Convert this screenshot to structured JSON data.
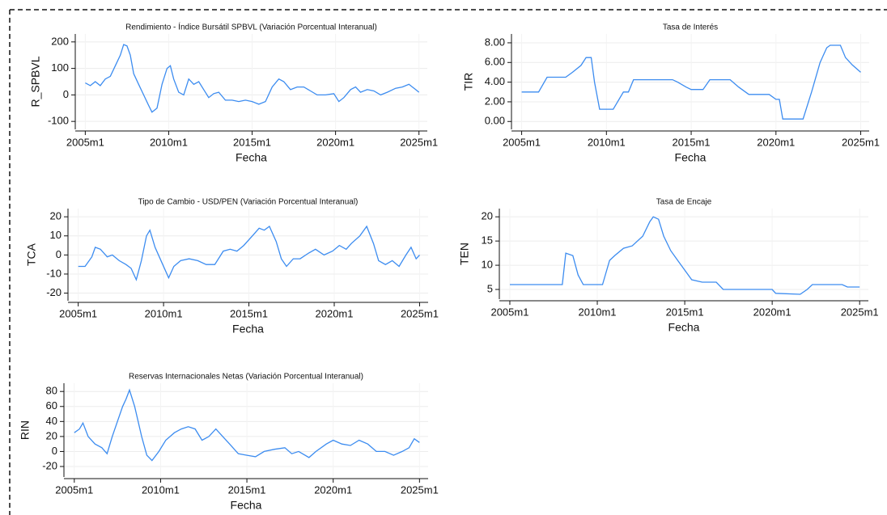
{
  "chart_data": [
    {
      "type": "line",
      "title": "Rendimiento - Índice Bursátil SPBVL (Variación Porcentual Interanual)",
      "xlabel": "Fecha",
      "ylabel": "R_SPBVL",
      "color": "#3c8cf0",
      "grid": true,
      "xlim": [
        2004.4,
        2025.5
      ],
      "xticks": [
        {
          "value": 2005,
          "label": "2005m1"
        },
        {
          "value": 2010,
          "label": "2010m1"
        },
        {
          "value": 2015,
          "label": "2015m1"
        },
        {
          "value": 2020,
          "label": "2020m1"
        },
        {
          "value": 2025,
          "label": "2025m1"
        }
      ],
      "ylim": [
        -130,
        230
      ],
      "yticks": [
        -100,
        0,
        100,
        200
      ],
      "x": [
        2005,
        2005.3,
        2005.6,
        2005.9,
        2006.2,
        2006.5,
        2006.8,
        2007.1,
        2007.3,
        2007.5,
        2007.7,
        2007.9,
        2008.2,
        2008.5,
        2008.8,
        2009.0,
        2009.3,
        2009.6,
        2009.9,
        2010.1,
        2010.3,
        2010.6,
        2010.9,
        2011.2,
        2011.5,
        2011.8,
        2012.1,
        2012.4,
        2012.7,
        2013.0,
        2013.4,
        2013.8,
        2014.2,
        2014.6,
        2015.0,
        2015.4,
        2015.8,
        2016.2,
        2016.6,
        2016.9,
        2017.3,
        2017.7,
        2018.1,
        2018.5,
        2018.9,
        2019.4,
        2019.9,
        2020.2,
        2020.5,
        2020.9,
        2021.2,
        2021.5,
        2021.9,
        2022.3,
        2022.7,
        2023.1,
        2023.6,
        2024.0,
        2024.4,
        2024.8,
        2025.0
      ],
      "values": [
        45,
        35,
        50,
        35,
        60,
        70,
        110,
        150,
        190,
        185,
        150,
        80,
        40,
        0,
        -40,
        -65,
        -50,
        40,
        100,
        110,
        60,
        10,
        0,
        60,
        40,
        50,
        20,
        -10,
        5,
        10,
        -20,
        -20,
        -25,
        -20,
        -25,
        -35,
        -25,
        30,
        60,
        50,
        20,
        30,
        30,
        15,
        0,
        0,
        5,
        -25,
        -10,
        20,
        30,
        10,
        20,
        15,
        0,
        10,
        25,
        30,
        40,
        20,
        10
      ]
    },
    {
      "type": "line",
      "title": "Tasa de Interés",
      "xlabel": "Fecha",
      "ylabel": "TIR",
      "color": "#3c8cf0",
      "grid": true,
      "xlim": [
        2004.4,
        2025.5
      ],
      "xticks": [
        {
          "value": 2005,
          "label": "2005m1"
        },
        {
          "value": 2010,
          "label": "2010m1"
        },
        {
          "value": 2015,
          "label": "2015m1"
        },
        {
          "value": 2020,
          "label": "2020m1"
        },
        {
          "value": 2025,
          "label": "2025m1"
        }
      ],
      "ylim": [
        -0.8,
        8.9
      ],
      "yticks": [
        {
          "value": 0,
          "label": "0.00"
        },
        {
          "value": 2,
          "label": "2.00"
        },
        {
          "value": 4,
          "label": "4.00"
        },
        {
          "value": 6,
          "label": "6.00"
        },
        {
          "value": 8,
          "label": "8.00"
        }
      ],
      "x": [
        2005,
        2006,
        2006.5,
        2007.6,
        2008.0,
        2008.5,
        2008.8,
        2009.1,
        2009.3,
        2009.6,
        2010.4,
        2011.0,
        2011.3,
        2011.6,
        2013.9,
        2014.2,
        2014.7,
        2015.0,
        2015.7,
        2016.1,
        2017.3,
        2017.8,
        2018.4,
        2019.6,
        2020.0,
        2020.2,
        2020.4,
        2021.6,
        2022.1,
        2022.6,
        2023.0,
        2023.2,
        2023.8,
        2024.1,
        2024.5,
        2025.0
      ],
      "values": [
        3,
        3,
        4.5,
        4.5,
        5,
        5.7,
        6.5,
        6.5,
        4,
        1.25,
        1.25,
        3,
        3,
        4.25,
        4.25,
        4,
        3.5,
        3.25,
        3.25,
        4.25,
        4.25,
        3.5,
        2.75,
        2.75,
        2.25,
        2.25,
        0.25,
        0.25,
        3,
        6,
        7.5,
        7.75,
        7.75,
        6.5,
        5.75,
        5
      ]
    },
    {
      "type": "line",
      "title": "Tipo de Cambio - USD/PEN (Variación Porcentual Interanual)",
      "xlabel": "Fecha",
      "ylabel": "TCA",
      "color": "#3c8cf0",
      "grid": true,
      "xlim": [
        2004.4,
        2025.5
      ],
      "xticks": [
        {
          "value": 2005,
          "label": "2005m1"
        },
        {
          "value": 2010,
          "label": "2010m1"
        },
        {
          "value": 2015,
          "label": "2015m1"
        },
        {
          "value": 2020,
          "label": "2020m1"
        },
        {
          "value": 2025,
          "label": "2025m1"
        }
      ],
      "ylim": [
        -24,
        24.3
      ],
      "yticks": [
        -20,
        -10,
        0,
        10,
        20
      ],
      "x": [
        2005,
        2005.4,
        2005.8,
        2006.0,
        2006.3,
        2006.7,
        2007.0,
        2007.4,
        2007.8,
        2008.1,
        2008.4,
        2008.7,
        2009.0,
        2009.2,
        2009.5,
        2009.9,
        2010.3,
        2010.6,
        2011.0,
        2011.5,
        2012.0,
        2012.5,
        2013.0,
        2013.5,
        2013.9,
        2014.3,
        2014.7,
        2015.2,
        2015.6,
        2015.9,
        2016.2,
        2016.6,
        2016.9,
        2017.2,
        2017.6,
        2018.0,
        2018.5,
        2018.9,
        2019.4,
        2019.9,
        2020.3,
        2020.7,
        2021.0,
        2021.5,
        2021.9,
        2022.3,
        2022.6,
        2023.0,
        2023.4,
        2023.8,
        2024.2,
        2024.5,
        2024.8,
        2025.0
      ],
      "values": [
        -6,
        -6,
        -1,
        4,
        3,
        -1,
        0,
        -3,
        -5,
        -7,
        -13,
        -3,
        10,
        13,
        4,
        -4,
        -12,
        -6,
        -3,
        -2,
        -3,
        -5,
        -5,
        2,
        3,
        2,
        5,
        10,
        14,
        13,
        15,
        7,
        -2,
        -6,
        -2,
        -2,
        1,
        3,
        0,
        2,
        5,
        3,
        6,
        10,
        15,
        6,
        -3,
        -5,
        -3,
        -6,
        0,
        4,
        -2,
        0
      ]
    },
    {
      "type": "line",
      "title": "Tasa de Encaje",
      "xlabel": "Fecha",
      "ylabel": "TEN",
      "color": "#3c8cf0",
      "grid": true,
      "xlim": [
        2004.4,
        2025.5
      ],
      "xticks": [
        {
          "value": 2005,
          "label": "2005m1"
        },
        {
          "value": 2010,
          "label": "2010m1"
        },
        {
          "value": 2015,
          "label": "2015m1"
        },
        {
          "value": 2020,
          "label": "2020m1"
        },
        {
          "value": 2025,
          "label": "2025m1"
        }
      ],
      "ylim": [
        3,
        21.7
      ],
      "yticks": [
        5,
        10,
        15,
        20
      ],
      "x": [
        2005,
        2008.0,
        2008.2,
        2008.6,
        2008.9,
        2009.2,
        2010.3,
        2010.7,
        2011.0,
        2011.5,
        2012.0,
        2012.6,
        2013.0,
        2013.2,
        2013.5,
        2013.8,
        2014.2,
        2014.6,
        2015.0,
        2015.4,
        2016.0,
        2016.8,
        2017.2,
        2019.0,
        2020.0,
        2020.2,
        2021.6,
        2022.0,
        2022.3,
        2024.0,
        2024.3,
        2025.0
      ],
      "values": [
        6,
        6,
        12.5,
        12,
        8,
        6,
        6,
        11,
        12,
        13.5,
        14,
        16,
        19,
        20,
        19.5,
        16,
        13,
        11,
        9,
        7,
        6.5,
        6.5,
        5,
        5,
        5,
        4.2,
        4,
        5,
        6,
        6,
        5.5,
        5.5
      ]
    },
    {
      "type": "line",
      "title": "Reservas Internacionales Netas (Variación Porcentual Interanual)",
      "xlabel": "Fecha",
      "ylabel": "RIN",
      "color": "#3c8cf0",
      "grid": true,
      "xlim": [
        2004.4,
        2025.5
      ],
      "xticks": [
        {
          "value": 2005,
          "label": "2005m1"
        },
        {
          "value": 2010,
          "label": "2010m1"
        },
        {
          "value": 2015,
          "label": "2015m1"
        },
        {
          "value": 2020,
          "label": "2020m1"
        },
        {
          "value": 2025,
          "label": "2025m1"
        }
      ],
      "ylim": [
        -34,
        91
      ],
      "yticks": [
        -20,
        0,
        20,
        40,
        60,
        80
      ],
      "x": [
        2005,
        2005.3,
        2005.5,
        2005.8,
        2006.2,
        2006.6,
        2006.9,
        2007.2,
        2007.5,
        2007.8,
        2008.0,
        2008.2,
        2008.5,
        2008.9,
        2009.2,
        2009.5,
        2009.9,
        2010.3,
        2010.8,
        2011.2,
        2011.6,
        2012.0,
        2012.4,
        2012.8,
        2013.2,
        2013.6,
        2014.0,
        2014.5,
        2015.0,
        2015.5,
        2016.0,
        2016.6,
        2017.2,
        2017.6,
        2018.0,
        2018.6,
        2019.0,
        2019.6,
        2020.0,
        2020.5,
        2021.0,
        2021.5,
        2022.0,
        2022.5,
        2023.0,
        2023.5,
        2024.0,
        2024.4,
        2024.7,
        2025.0
      ],
      "values": [
        25,
        30,
        38,
        20,
        10,
        5,
        -3,
        20,
        40,
        60,
        70,
        82,
        60,
        20,
        -5,
        -12,
        0,
        15,
        25,
        30,
        33,
        30,
        15,
        20,
        30,
        20,
        10,
        -3,
        -5,
        -7,
        0,
        3,
        5,
        -3,
        0,
        -8,
        0,
        10,
        15,
        10,
        8,
        15,
        10,
        0,
        0,
        -5,
        0,
        5,
        17,
        12
      ]
    }
  ]
}
